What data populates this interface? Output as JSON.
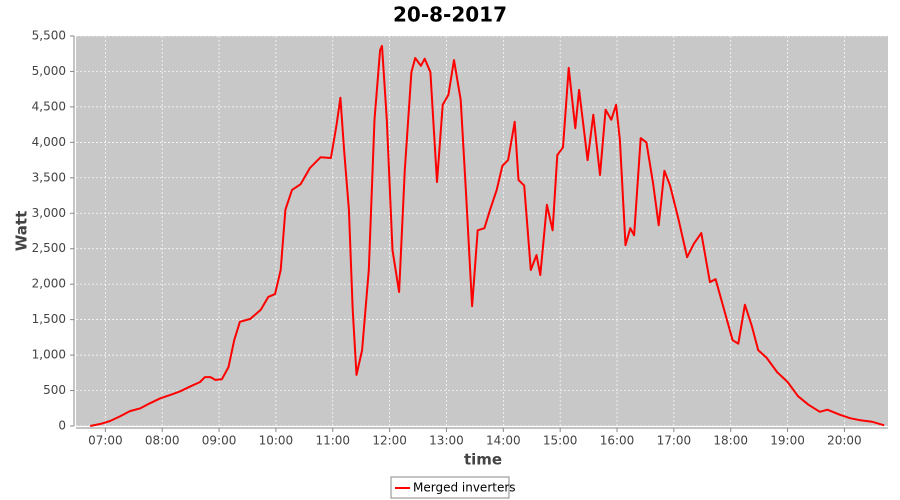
{
  "chart_data": {
    "type": "line",
    "title": "20-8-2017",
    "x_label": "time",
    "y_label": "Watt",
    "x": [
      "06:44",
      "06:55",
      "07:05",
      "07:16",
      "07:26",
      "07:37",
      "07:47",
      "07:58",
      "08:09",
      "08:19",
      "08:30",
      "08:40",
      "08:45",
      "08:51",
      "08:56",
      "09:03",
      "09:10",
      "09:16",
      "09:22",
      "09:33",
      "09:44",
      "09:52",
      "09:59",
      "10:05",
      "10:10",
      "10:17",
      "10:26",
      "10:36",
      "10:47",
      "10:58",
      "11:04",
      "11:08",
      "11:12",
      "11:17",
      "11:21",
      "11:25",
      "11:31",
      "11:38",
      "11:44",
      "11:50",
      "11:52",
      "11:57",
      "12:03",
      "12:10",
      "12:16",
      "12:23",
      "12:27",
      "12:33",
      "12:37",
      "12:43",
      "12:50",
      "12:56",
      "13:02",
      "13:08",
      "13:15",
      "13:21",
      "13:27",
      "13:33",
      "13:40",
      "13:46",
      "13:53",
      "13:59",
      "14:05",
      "14:12",
      "14:16",
      "14:22",
      "14:29",
      "14:35",
      "14:39",
      "14:46",
      "14:52",
      "14:57",
      "15:03",
      "15:09",
      "15:16",
      "15:20",
      "15:29",
      "15:35",
      "15:42",
      "15:48",
      "15:54",
      "15:59",
      "16:03",
      "16:09",
      "16:14",
      "16:18",
      "16:25",
      "16:31",
      "16:38",
      "16:44",
      "16:50",
      "16:56",
      "17:05",
      "17:14",
      "17:21",
      "17:29",
      "17:38",
      "17:44",
      "17:53",
      "18:02",
      "18:08",
      "18:15",
      "18:22",
      "18:29",
      "18:38",
      "18:49",
      "19:00",
      "19:11",
      "19:22",
      "19:34",
      "19:42",
      "19:55",
      "20:06",
      "20:17",
      "20:29",
      "20:42"
    ],
    "series": [
      {
        "name": "Merged inverters",
        "color": "#ff0000",
        "values": [
          0,
          30,
          70,
          140,
          210,
          250,
          320,
          390,
          440,
          490,
          560,
          620,
          690,
          690,
          650,
          660,
          830,
          1210,
          1470,
          1510,
          1640,
          1820,
          1860,
          2200,
          3050,
          3330,
          3410,
          3640,
          3790,
          3780,
          4250,
          4630,
          3890,
          3050,
          1640,
          720,
          1070,
          2200,
          4320,
          5300,
          5360,
          4320,
          2480,
          1890,
          3610,
          4990,
          5190,
          5080,
          5180,
          4990,
          3440,
          4530,
          4670,
          5160,
          4600,
          3190,
          1690,
          2760,
          2790,
          3050,
          3330,
          3670,
          3750,
          4290,
          3470,
          3390,
          2200,
          2410,
          2130,
          3120,
          2760,
          3820,
          3930,
          5050,
          4200,
          4740,
          3750,
          4390,
          3540,
          4460,
          4320,
          4530,
          4030,
          2550,
          2790,
          2690,
          4060,
          4000,
          3430,
          2830,
          3600,
          3390,
          2910,
          2380,
          2570,
          2720,
          2030,
          2070,
          1640,
          1210,
          1160,
          1710,
          1420,
          1070,
          960,
          760,
          620,
          420,
          300,
          200,
          230,
          160,
          110,
          80,
          60,
          10
        ]
      }
    ],
    "xlim": [
      "06:29",
      "20:46"
    ],
    "xticks": [
      "07:00",
      "08:00",
      "09:00",
      "10:00",
      "11:00",
      "12:00",
      "13:00",
      "14:00",
      "15:00",
      "16:00",
      "17:00",
      "18:00",
      "19:00",
      "20:00"
    ],
    "ylim": [
      0,
      5500
    ],
    "yticks": [
      0,
      500,
      {
        "value": 1000,
        "label": "1,000"
      },
      {
        "value": 1500,
        "label": "1,500"
      },
      {
        "value": 2000,
        "label": "2,000"
      },
      {
        "value": 2500,
        "label": "2,500"
      },
      {
        "value": 3000,
        "label": "3,000"
      },
      {
        "value": 3500,
        "label": "3,500"
      },
      {
        "value": 4000,
        "label": "4,000"
      },
      {
        "value": 4500,
        "label": "4,500"
      },
      {
        "value": 5000,
        "label": "5,000"
      },
      {
        "value": 5500,
        "label": "5,500"
      }
    ],
    "grid": true,
    "legend": "bottom"
  }
}
